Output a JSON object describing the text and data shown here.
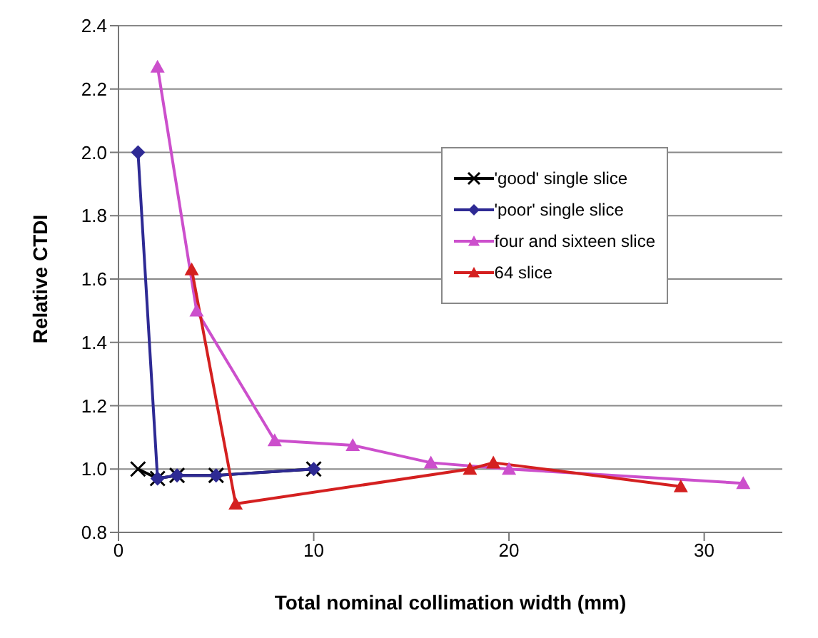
{
  "chart_data": {
    "type": "line",
    "xlabel": "Total nominal collimation width (mm)",
    "ylabel": "Relative CTDI",
    "xlim": [
      0,
      34
    ],
    "xticks": [
      0,
      10,
      20,
      30
    ],
    "ylim": [
      0.8,
      2.4
    ],
    "yticks": [
      {
        "value": 0.8,
        "label": "0.8"
      },
      {
        "value": 1,
        "label": "1.0"
      },
      {
        "value": 1.2,
        "label": "1.2"
      },
      {
        "value": 1.4,
        "label": "1.4"
      },
      {
        "value": 1.6,
        "label": "1.6"
      },
      {
        "value": 1.8,
        "label": "1.8"
      },
      {
        "value": 2,
        "label": "2.0"
      },
      {
        "value": 2.2,
        "label": "2.2"
      },
      {
        "value": 2.4,
        "label": "2.4"
      }
    ],
    "grid": "y",
    "legend": "right",
    "series": [
      {
        "name": "'good' single slice",
        "color": "#000000",
        "marker": "cross",
        "x": [
          1,
          2,
          3,
          5,
          10
        ],
        "values": [
          1.0,
          0.97,
          0.98,
          0.98,
          1.0
        ]
      },
      {
        "name": "'poor' single slice",
        "color": "#2e2a94",
        "marker": "diamond",
        "x": [
          1,
          2,
          3,
          5,
          10
        ],
        "values": [
          2.0,
          0.97,
          0.98,
          0.98,
          1.0
        ]
      },
      {
        "name": "four and sixteen slice",
        "color": "#cc4fcc",
        "marker": "triangle",
        "x": [
          2,
          4,
          8,
          12,
          16,
          20,
          32
        ],
        "values": [
          2.27,
          1.5,
          1.09,
          1.075,
          1.02,
          1.0,
          0.955
        ]
      },
      {
        "name": "64 slice",
        "color": "#d42020",
        "marker": "triangle",
        "x": [
          3.75,
          6,
          18,
          19.2,
          28.8
        ],
        "values": [
          1.63,
          0.89,
          1.0,
          1.02,
          0.945
        ]
      }
    ]
  }
}
